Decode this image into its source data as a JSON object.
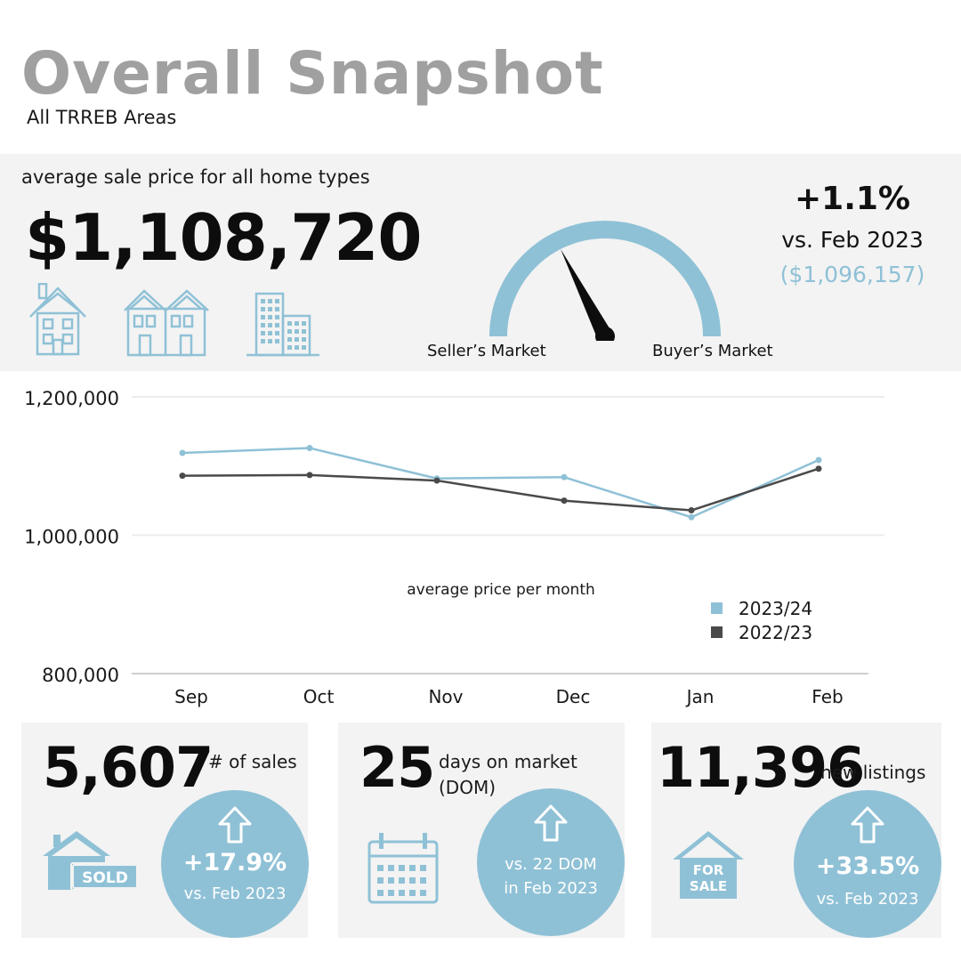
{
  "header": {
    "title": "Overall Snapshot",
    "subtitle": "All TRREB Areas"
  },
  "hero": {
    "label": "average sale price for all home types",
    "value": "$1,108,720",
    "home_type_icons": [
      "detached-house-icon",
      "townhouse-icon",
      "condo-building-icon"
    ],
    "gauge": {
      "left_label": "Seller’s Market",
      "right_label": "Buyer’s Market",
      "needle_position": 0.35
    },
    "change": {
      "percent": "+1.1%",
      "vs": "vs. Feb 2023",
      "previous": "($1,096,157)"
    }
  },
  "chart_data": {
    "type": "line",
    "title": "average price per month",
    "categories": [
      "Sep",
      "Oct",
      "Nov",
      "Dec",
      "Jan",
      "Feb"
    ],
    "ylim": [
      800000,
      1200000
    ],
    "y_ticks": [
      "1,200,000",
      "1,000,000",
      "800,000"
    ],
    "y_tick_values": [
      1200000,
      1000000,
      800000
    ],
    "grid": true,
    "legend_position": "bottom-right",
    "series": [
      {
        "name": "2023/24",
        "color": "#8fc1d6",
        "values": [
          1119000,
          1126000,
          1082000,
          1084000,
          1026000,
          1108720
        ]
      },
      {
        "name": "2022/23",
        "color": "#4a4a4a",
        "values": [
          1086000,
          1087000,
          1079000,
          1050000,
          1036000,
          1096157
        ]
      }
    ]
  },
  "cards": [
    {
      "value": "5,607",
      "label_lines": [
        "# of sales"
      ],
      "icon": "sold-house-icon",
      "icon_text": "SOLD",
      "change": "+17.9%",
      "vs": "vs. Feb 2023"
    },
    {
      "value": "25",
      "label_lines": [
        "days on market",
        "(DOM)"
      ],
      "icon": "calendar-icon",
      "change_lines": [
        "vs. 22 DOM",
        "in Feb 2023"
      ]
    },
    {
      "value": "11,396",
      "label_lines": [
        "new listings"
      ],
      "icon": "for-sale-house-icon",
      "icon_text_lines": [
        "FOR",
        "SALE"
      ],
      "change": "+33.5%",
      "vs": "vs. Feb 2023"
    }
  ],
  "colors": {
    "accent": "#8fc1d6",
    "dark_series": "#4a4a4a",
    "title_gray": "#a0a0a0",
    "panel_bg": "#f3f3f3"
  }
}
